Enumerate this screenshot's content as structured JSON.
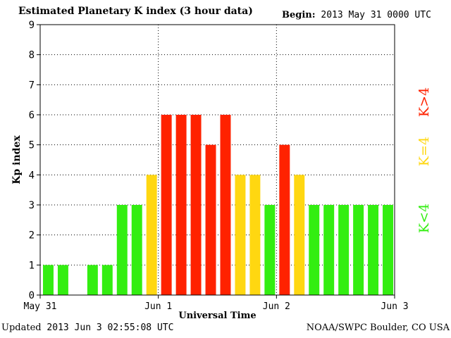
{
  "header": {
    "title": "Estimated Planetary K index (3 hour data)",
    "begin_label": "Begin:",
    "begin_value": "2013 May 31 0000 UTC"
  },
  "footer": {
    "updated_label": "Updated",
    "updated_value": "2013 Jun  3 02:55:08 UTC",
    "credit": "NOAA/SWPC Boulder, CO USA"
  },
  "legend": {
    "items": [
      {
        "label": "K<4",
        "color": "#33ee11"
      },
      {
        "label": "K=4",
        "color": "#ffd711"
      },
      {
        "label": "K>4",
        "color": "#ff2200"
      }
    ]
  },
  "chart_data": {
    "type": "bar",
    "title": "Estimated Planetary K index (3 hour data)",
    "xlabel": "Universal Time",
    "ylabel": "Kp index",
    "ylim": [
      0,
      9
    ],
    "yticks": [
      0,
      1,
      2,
      3,
      4,
      5,
      6,
      7,
      8,
      9
    ],
    "xticks": [
      {
        "label": "May 31",
        "slot": 0
      },
      {
        "label": "Jun 1",
        "slot": 8
      },
      {
        "label": "Jun 2",
        "slot": 16
      },
      {
        "label": "Jun 3",
        "slot": 24
      }
    ],
    "grid": true,
    "slots": 24,
    "values": [
      1,
      1,
      0,
      1,
      1,
      3,
      3,
      4,
      6,
      6,
      6,
      5,
      6,
      4,
      4,
      3,
      5,
      4,
      3,
      3,
      3,
      3,
      3,
      3
    ],
    "colors": {
      "low": "#33ee11",
      "mid": "#ffd711",
      "high": "#ff2200"
    }
  }
}
